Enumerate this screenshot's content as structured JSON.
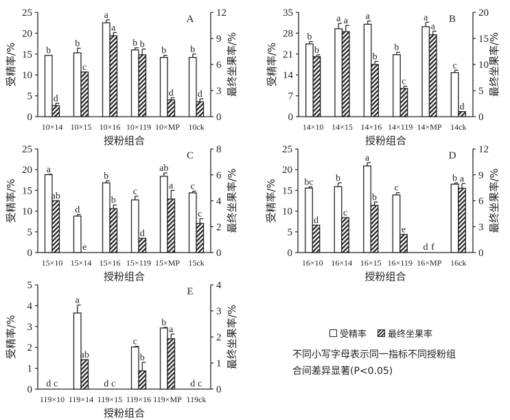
{
  "legend": {
    "fertilization": "受精率",
    "fruit_set": "最终坐果率"
  },
  "note": {
    "line1": "不同小写字母表示同一指标不同授粉组",
    "line2": "合间差异显著(P<0.05)"
  },
  "chart_data": [
    {
      "type": "bar",
      "panel": "A",
      "categories": [
        "10×14",
        "10×15",
        "10×16",
        "10×119",
        "10×MP",
        "10ck"
      ],
      "xlabel": "授粉组合",
      "ylabel": "受精率/%",
      "y2label": "最终坐果率/%",
      "ylim": [
        0,
        25
      ],
      "yticks": [
        0,
        5,
        10,
        15,
        20,
        25
      ],
      "y2lim": [
        0,
        12
      ],
      "y2ticks": [
        0,
        3,
        6,
        9,
        12
      ],
      "series": [
        {
          "name": "受精率",
          "axis": "left",
          "values": [
            14.7,
            15.3,
            22.5,
            16.0,
            14.2,
            14.2
          ],
          "errors": [
            0,
            1.1,
            0.7,
            0.5,
            0.5,
            0.8
          ],
          "letters": [
            "b",
            "b",
            "a",
            "b",
            "b",
            "b"
          ]
        },
        {
          "name": "最终坐果率",
          "axis": "right",
          "values": [
            1.27,
            5.14,
            9.31,
            7.12,
            1.93,
            1.71
          ],
          "errors": [
            0.27,
            0,
            0.37,
            0.66,
            0.24,
            0.34
          ],
          "letters": [
            "d",
            "c",
            "a",
            "b",
            "d",
            "d"
          ]
        }
      ]
    },
    {
      "type": "bar",
      "panel": "B",
      "categories": [
        "14×10",
        "14×15",
        "14×16",
        "14×119",
        "14×MP",
        "14ck"
      ],
      "xlabel": "授粉组合",
      "ylabel": "受精率/%",
      "y2label": "最终坐果率/%",
      "ylim": [
        0,
        35
      ],
      "yticks": [
        0,
        7,
        14,
        21,
        28,
        35
      ],
      "y2lim": [
        0,
        20
      ],
      "y2ticks": [
        0,
        5,
        10,
        15,
        20
      ],
      "series": [
        {
          "name": "受精率",
          "axis": "left",
          "values": [
            24.4,
            29.5,
            31.0,
            20.8,
            30.2,
            14.8
          ],
          "errors": [
            0.8,
            1.8,
            1.1,
            0.8,
            1.5,
            0.8
          ],
          "letters": [
            "b",
            "a",
            "a",
            "b",
            "a",
            "c"
          ]
        },
        {
          "name": "最终坐果率",
          "axis": "right",
          "values": [
            11.5,
            16.3,
            10.0,
            5.4,
            15.7,
            0.97
          ],
          "errors": [
            0.35,
            1.2,
            0.6,
            0.45,
            0.7,
            0
          ],
          "letters": [
            "b",
            "a",
            "b",
            "c",
            "a",
            "d"
          ]
        }
      ]
    },
    {
      "type": "bar",
      "panel": "C",
      "categories": [
        "15×10",
        "15×14",
        "15×16",
        "15×119",
        "15×MP",
        "15ck"
      ],
      "xlabel": "授粉组合",
      "ylabel": "受精率/%",
      "y2label": "最终坐果率/%",
      "ylim": [
        0,
        25
      ],
      "yticks": [
        0,
        5,
        10,
        15,
        20,
        25
      ],
      "y2lim": [
        0,
        8
      ],
      "y2ticks": [
        0,
        2,
        4,
        6,
        8
      ],
      "series": [
        {
          "name": "受精率",
          "axis": "left",
          "values": [
            18.8,
            8.8,
            16.8,
            12.7,
            18.4,
            14.4
          ],
          "errors": [
            0.1,
            0.4,
            0.5,
            0.9,
            0.8,
            0.4
          ],
          "letters": [
            "a",
            "d",
            "b",
            "c",
            "ab",
            "c"
          ]
        },
        {
          "name": "最终坐果率",
          "axis": "right",
          "values": [
            4.0,
            0,
            3.39,
            1.1,
            4.13,
            2.25
          ],
          "errors": [
            0,
            0,
            0.28,
            0,
            0.67,
            0.37
          ],
          "letters": [
            "ab",
            "e",
            "b",
            "d",
            "a",
            "c"
          ]
        }
      ]
    },
    {
      "type": "bar",
      "panel": "D",
      "categories": [
        "16×10",
        "16×14",
        "16×15",
        "16×119",
        "16×MP",
        "16ck"
      ],
      "xlabel": "授粉组合",
      "ylabel": "受精率/%",
      "y2label": "最终坐果率/%",
      "ylim": [
        0,
        25
      ],
      "yticks": [
        0,
        5,
        10,
        15,
        20,
        25
      ],
      "y2lim": [
        0,
        12
      ],
      "y2ticks": [
        0,
        3,
        6,
        9,
        12
      ],
      "series": [
        {
          "name": "受精率",
          "axis": "left",
          "values": [
            15.55,
            15.9,
            20.9,
            13.9,
            0,
            16.5
          ],
          "errors": [
            0.3,
            0.9,
            0.8,
            0.55,
            0,
            0.3
          ],
          "letters": [
            "bc",
            "b",
            "a",
            "c",
            "d",
            "b"
          ]
        },
        {
          "name": "最终坐果率",
          "axis": "right",
          "values": [
            3.17,
            4.04,
            5.46,
            2.1,
            0,
            7.44
          ],
          "errors": [
            0,
            0,
            0.4,
            0,
            0,
            0.55
          ],
          "letters": [
            "d",
            "c",
            "b",
            "e",
            "f",
            "a"
          ]
        }
      ]
    },
    {
      "type": "bar",
      "panel": "E",
      "categories": [
        "119×10",
        "119×14",
        "119×15",
        "119×16",
        "119×MP",
        "119ck"
      ],
      "xlabel": "授粉组合",
      "ylabel": "受精率/%",
      "y2label": "最终坐果率/%",
      "ylim": [
        0,
        5
      ],
      "yticks": [
        0,
        1,
        2,
        3,
        4,
        5
      ],
      "y2lim": [
        0,
        4
      ],
      "y2ticks": [
        0,
        1,
        2,
        3,
        4
      ],
      "series": [
        {
          "name": "受精率",
          "axis": "left",
          "values": [
            0,
            3.65,
            0,
            2.02,
            2.93,
            0
          ],
          "errors": [
            0,
            0.38,
            0,
            0.03,
            0.03,
            0
          ],
          "letters": [
            "d",
            "a",
            "d",
            "c",
            "b",
            "d"
          ]
        },
        {
          "name": "最终坐果率",
          "axis": "right",
          "values": [
            0,
            1.13,
            0,
            0.7,
            1.93,
            0
          ],
          "errors": [
            0,
            0,
            0,
            0.33,
            0.18,
            0
          ],
          "letters": [
            "c",
            "ab",
            "c",
            "b",
            "a",
            "c"
          ]
        }
      ]
    }
  ]
}
